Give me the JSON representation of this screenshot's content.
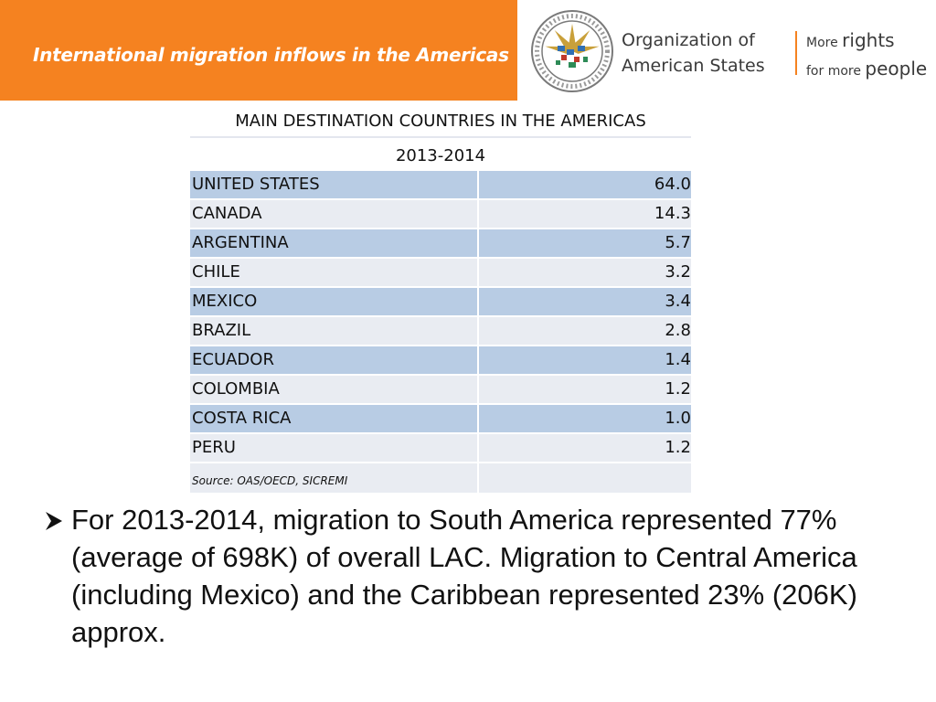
{
  "header": {
    "title": "International migration inflows in the Americas",
    "org_line1": "Organization of",
    "org_line2": "American States",
    "tagline_small1": "More",
    "tagline_big1": "rights",
    "tagline_small2": "for more",
    "tagline_big2": "people",
    "brand_color": "#f58220"
  },
  "table": {
    "title": "MAIN DESTINATION COUNTRIES IN THE AMERICAS",
    "period": "2013-2014",
    "rows": [
      {
        "country": "UNITED STATES",
        "value": "64.0"
      },
      {
        "country": "CANADA",
        "value": "14.3"
      },
      {
        "country": "ARGENTINA",
        "value": "5.7"
      },
      {
        "country": "CHILE",
        "value": "3.2"
      },
      {
        "country": "MEXICO",
        "value": "3.4"
      },
      {
        "country": "BRAZIL",
        "value": "2.8"
      },
      {
        "country": "ECUADOR",
        "value": "1.4"
      },
      {
        "country": "COLOMBIA",
        "value": "1.2"
      },
      {
        "country": "COSTA RICA",
        "value": "1.0"
      },
      {
        "country": "PERU",
        "value": "1.2"
      }
    ],
    "source": "Source: OAS/OECD, SICREMI",
    "row_colors": {
      "dark": "#b8cce4",
      "light": "#e9ecf2"
    }
  },
  "bullet": {
    "icon": "arrow-bullet-icon",
    "text": "For 2013-2014, migration to South America represented 77% (average of 698K) of overall LAC. Migration to Central America (including Mexico) and the Caribbean represented 23% (206K) approx."
  }
}
